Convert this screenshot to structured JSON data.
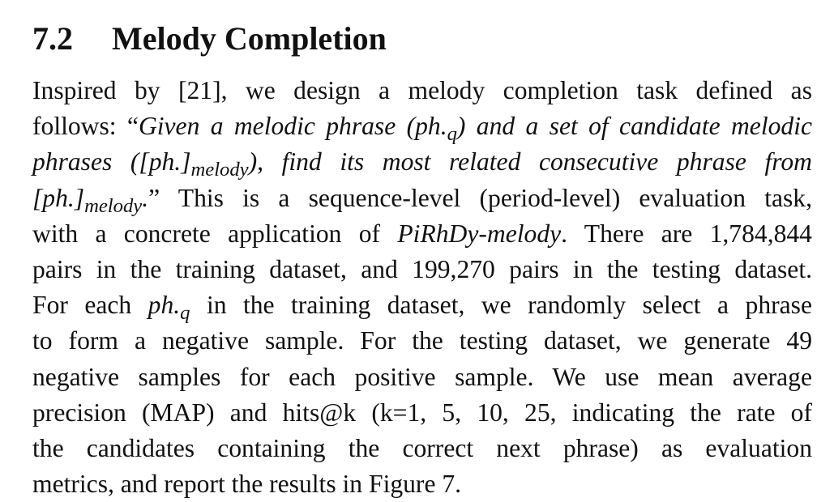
{
  "section": {
    "number": "7.2",
    "title": "Melody Completion"
  },
  "paragraph": {
    "l1": "Inspired by [21], we design a melody completion task defined as",
    "l2a": "follows: “",
    "l2b": "Given a melodic phrase (ph.",
    "l2c": "q",
    "l2d": ") and a set of candidate melodic",
    "l3a": "phrases ([ph.]",
    "l3b": "melody",
    "l3c": "), find its most related consecutive phrase from",
    "l4a": "[ph.]",
    "l4b": "melody",
    "l4c": ".",
    "l4d": "” This is a sequence-level (period-level) evaluation task,",
    "l5a": "with a concrete application of ",
    "l5b": "PiRhDy-melody",
    "l5c": ". There are 1,784,844",
    "l6": "pairs in the training dataset, and 199,270 pairs in the testing dataset.",
    "l7a": "For each ",
    "l7b": "ph.",
    "l7c": "q",
    "l7d": " in the training dataset, we randomly select a phrase",
    "l8": "to form a negative sample. For the testing dataset, we generate 49",
    "l9": "negative samples for each positive sample. We use mean average",
    "l10": "precision (MAP) and hits@k (k=1, 5, 10, 25, indicating the rate of",
    "l11": "the candidates containing the correct next phrase) as evaluation",
    "l12": "metrics, and report the results in Figure 7."
  }
}
